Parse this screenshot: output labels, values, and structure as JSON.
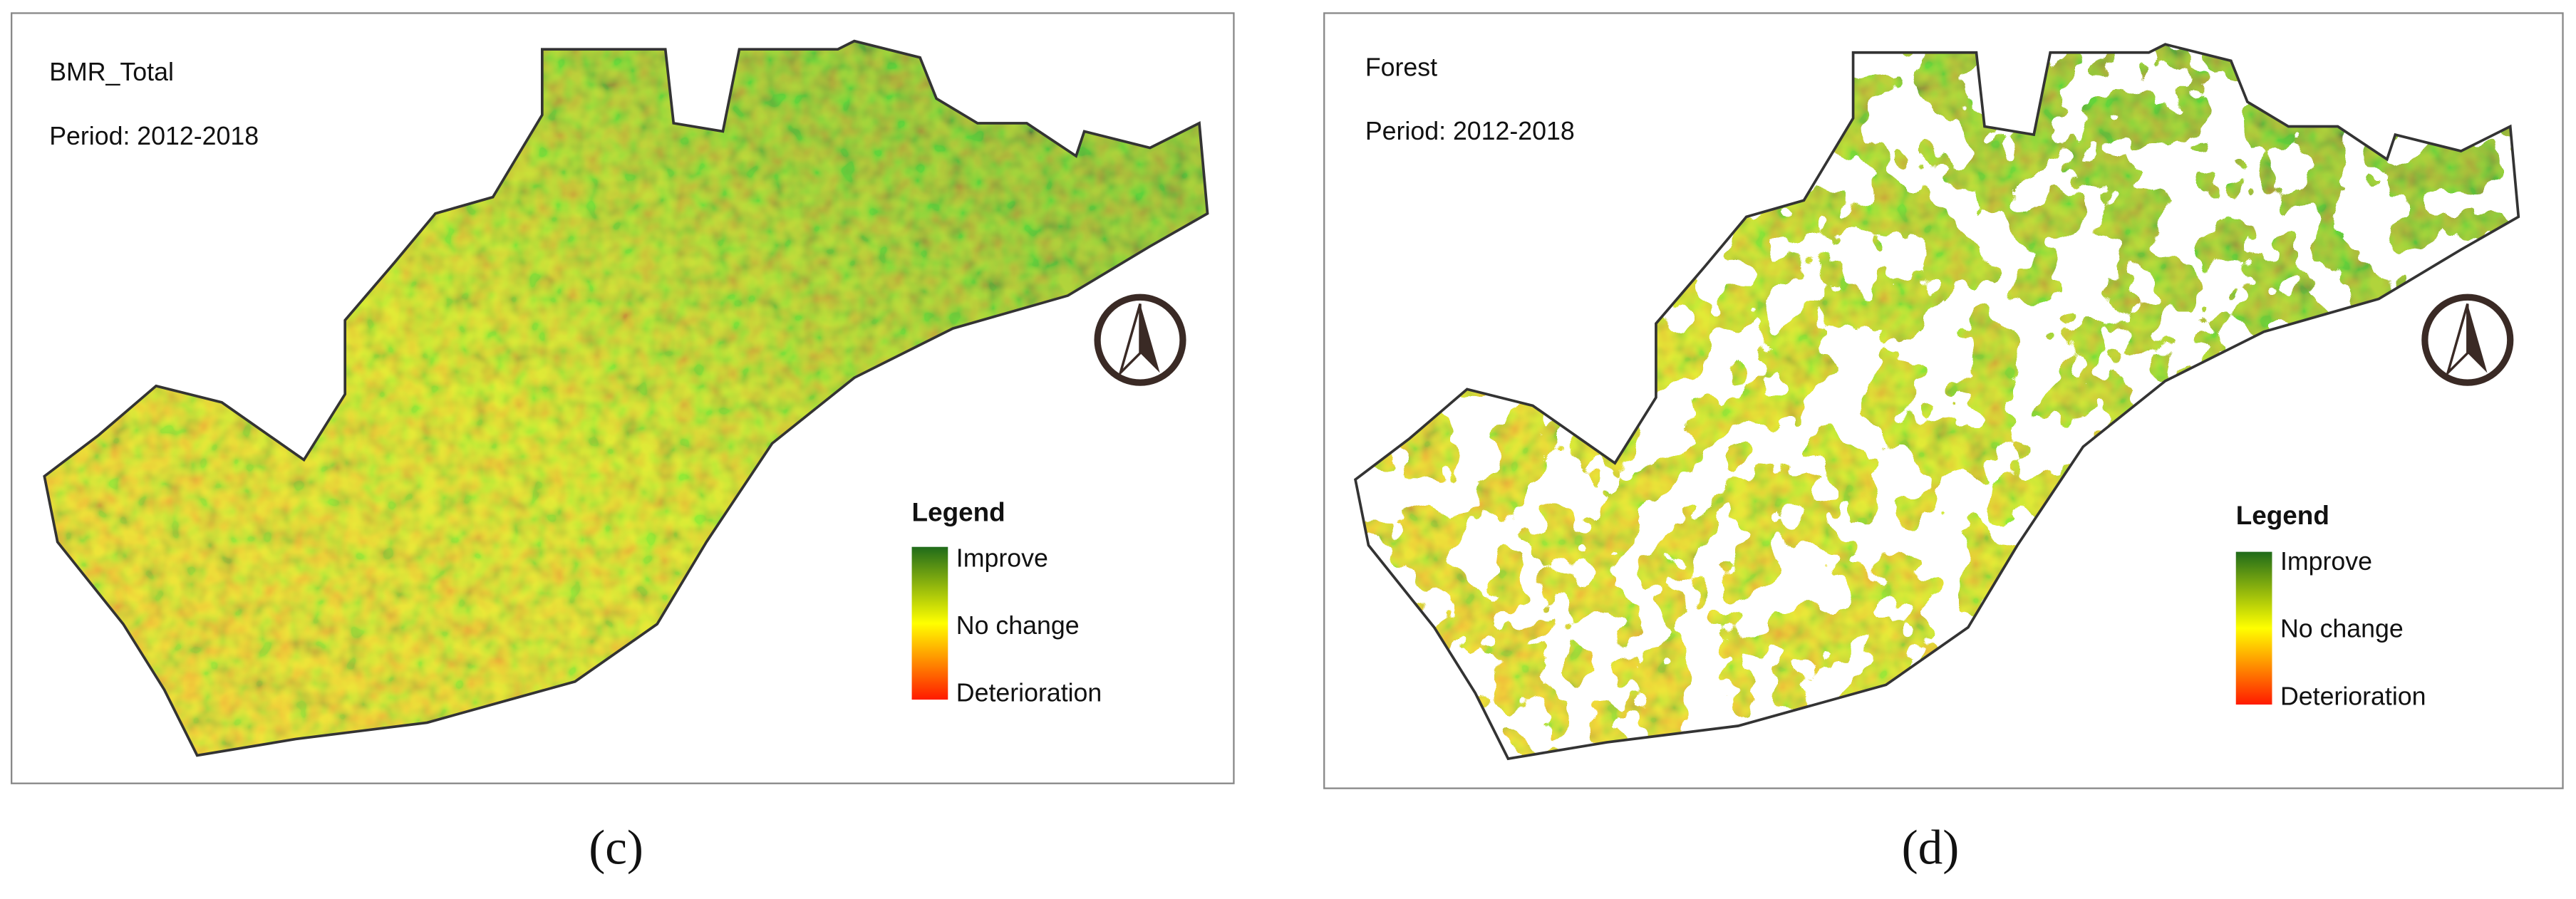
{
  "panels": [
    {
      "title": "BMR_Total",
      "period": "Period: 2012-2018",
      "legend": {
        "title": "Legend",
        "labels": [
          "Improve",
          "No change",
          "Deterioration"
        ]
      },
      "caption": "(c)"
    },
    {
      "title": "Forest",
      "period": "Period: 2012-2018",
      "legend": {
        "title": "Legend",
        "labels": [
          "Improve",
          "No change",
          "Deterioration"
        ]
      },
      "caption": "(d)"
    }
  ]
}
